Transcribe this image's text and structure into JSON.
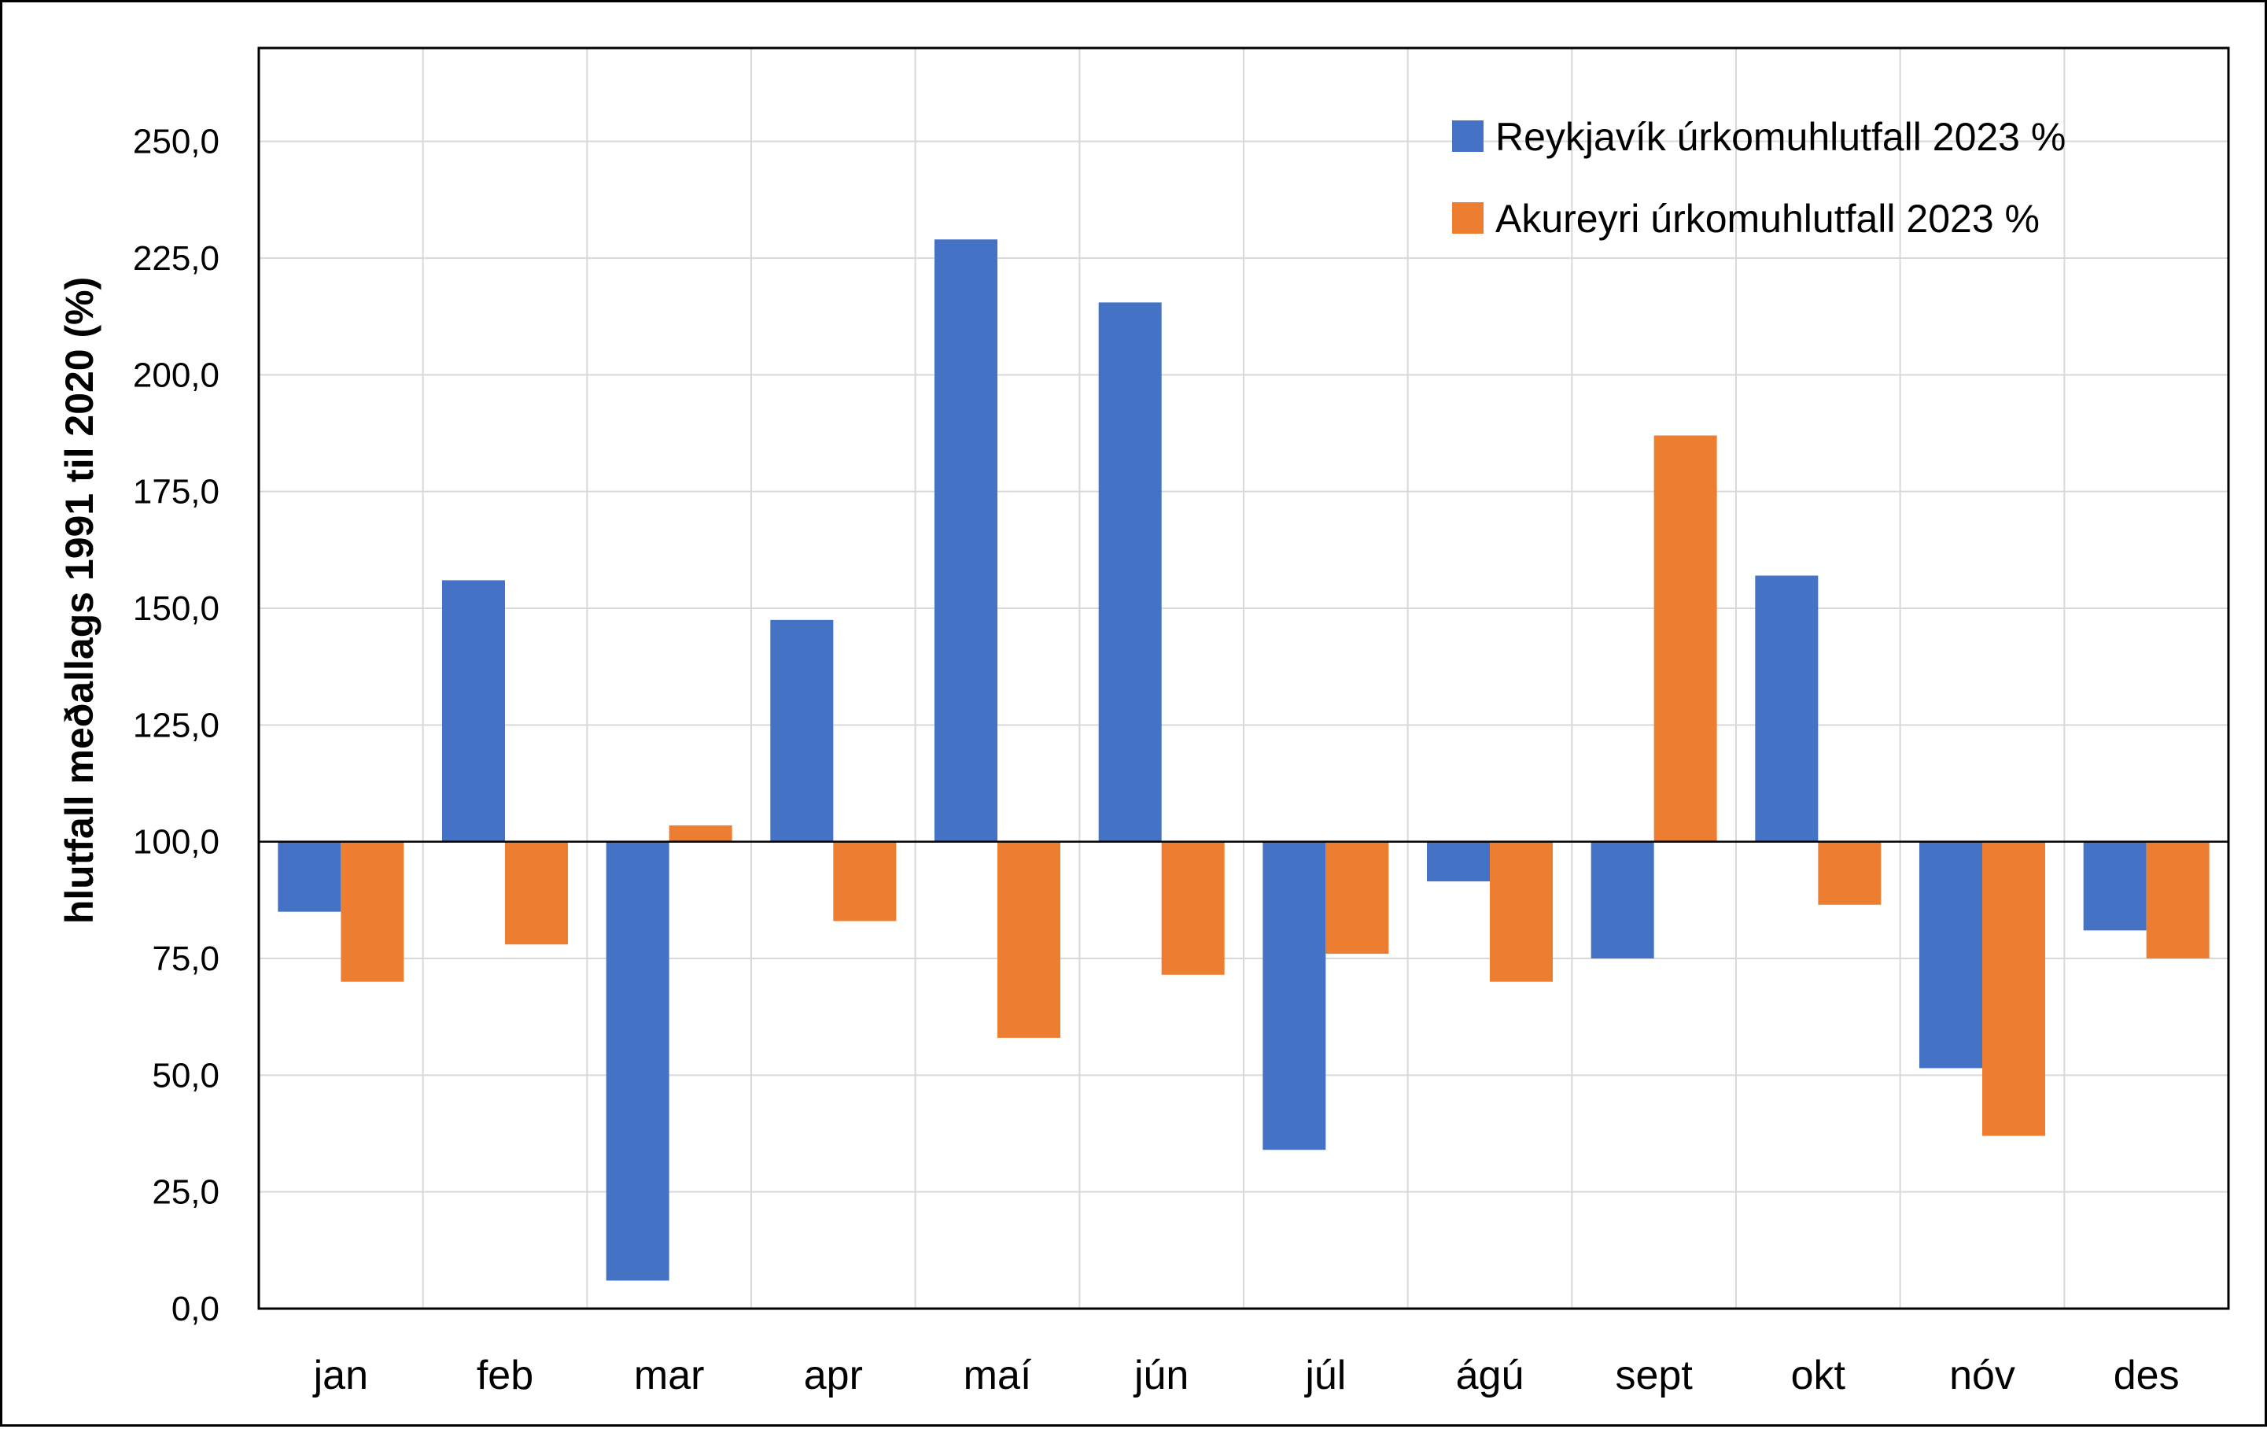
{
  "chart_data": {
    "type": "bar",
    "ylabel": "hlutfall  meðallags 1991 til 2020 (%)",
    "xlabel": "",
    "ylim": [
      0,
      270
    ],
    "baseline": 100,
    "yticks": [
      0,
      25,
      50,
      75,
      100,
      125,
      150,
      175,
      200,
      225,
      250
    ],
    "ytick_labels": [
      "0,0",
      "25,0",
      "50,0",
      "75,0",
      "100,0",
      "125,0",
      "150,0",
      "175,0",
      "200,0",
      "225,0",
      "250,0"
    ],
    "grid": true,
    "legend_position": "top-right",
    "categories": [
      "jan",
      "feb",
      "mar",
      "apr",
      "maí",
      "jún",
      "júl",
      "ágú",
      "sept",
      "okt",
      "nóv",
      "des"
    ],
    "series": [
      {
        "name": "Reykjavík úrkomuhlutfall 2023 %",
        "color": "#4472C4",
        "values": [
          85,
          156,
          6,
          147.5,
          229,
          215.5,
          34,
          91.5,
          75,
          157,
          51.5,
          81
        ]
      },
      {
        "name": "Akureyri úrkomuhlutfall 2023 %",
        "color": "#ED7D31",
        "values": [
          70,
          78,
          103.5,
          83,
          58,
          71.5,
          76,
          70,
          187,
          86.5,
          37,
          75
        ]
      }
    ]
  }
}
